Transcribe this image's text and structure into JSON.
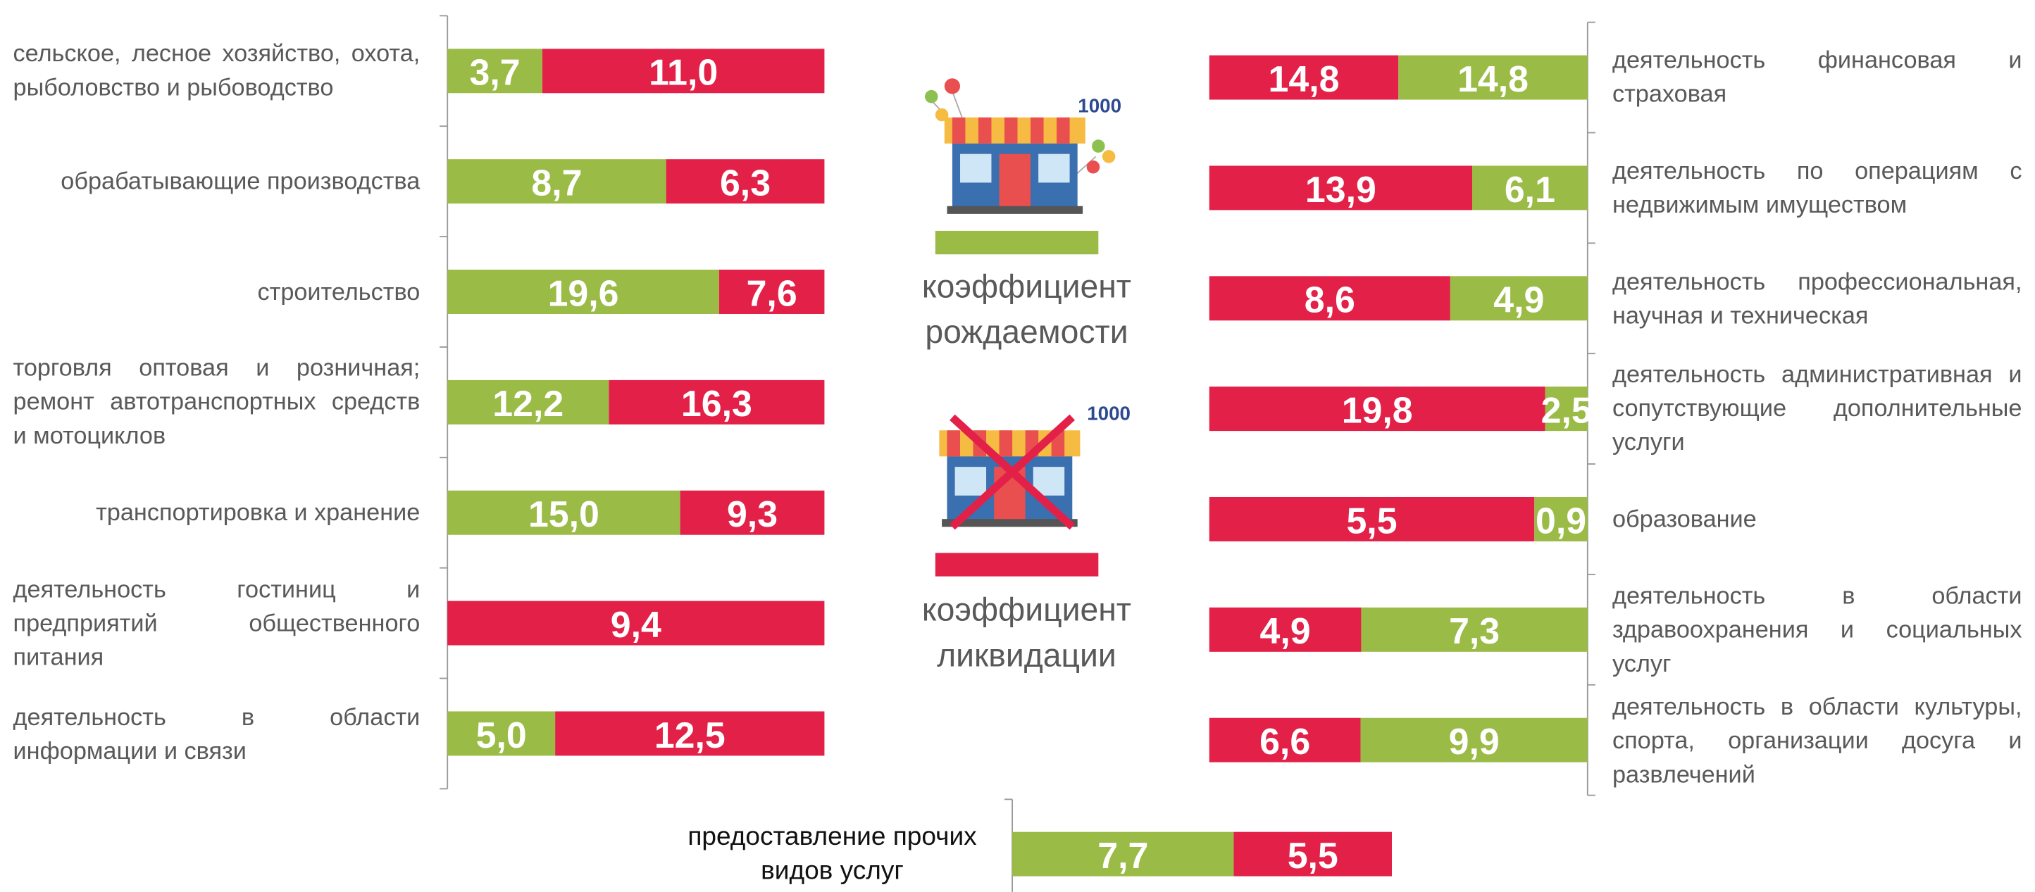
{
  "chart_data": [
    {
      "type": "bar",
      "stacked": "percent",
      "orientation": "horizontal",
      "per_unit_label": "1000",
      "categories": [
        "сельское, лесное хозяйство, охота, рыболовство и рыбоводство",
        "обрабатывающие производства",
        "строительство",
        "торговля оптовая и розничная; ремонт автотранспортных средств и мотоциклов",
        "транспортировка и хранение",
        "деятельность гостиниц и предприятий общественного питания",
        "деятельность в области информации и связи"
      ],
      "series": [
        {
          "name": "коэффициент рождаемости",
          "color": "#9bbb47",
          "values": [
            3.7,
            8.7,
            19.6,
            12.2,
            15.0,
            null,
            5.0
          ],
          "value_labels": [
            "3,7",
            "8,7",
            "19,6",
            "12,2",
            "15,0",
            null,
            "5,0"
          ]
        },
        {
          "name": "коэффициент ликвидации",
          "color": "#e32148",
          "values": [
            11.0,
            6.3,
            7.6,
            16.3,
            9.3,
            9.4,
            12.5
          ],
          "value_labels": [
            "11,0",
            "6,3",
            "7,6",
            "16,3",
            "9,3",
            "9,4",
            "12,5"
          ]
        }
      ]
    },
    {
      "type": "bar",
      "stacked": "percent",
      "orientation": "horizontal",
      "categories": [
        "деятельность финансовая и страховая",
        "деятельность по операциям с недвижимым имуществом",
        "деятельность профессиональная, научная и техническая",
        "деятельность административная и сопутствующие дополнительные услуги",
        "образование",
        "деятельность в области здравоохранения и социальных услуг",
        "деятельность в области культуры, спорта, организации досуга и развлечений"
      ],
      "series": [
        {
          "color": "#e32148",
          "values": [
            14.8,
            13.9,
            8.6,
            19.8,
            5.5,
            4.9,
            6.6
          ],
          "value_labels": [
            "14,8",
            "13,9",
            "8,6",
            "19,8",
            "5,5",
            "4,9",
            "6,6"
          ]
        },
        {
          "color": "#9bbb47",
          "values": [
            14.8,
            6.1,
            4.9,
            2.5,
            0.9,
            7.3,
            9.9
          ],
          "value_labels": [
            "14,8",
            "6,1",
            "4,9",
            "2,5",
            "0,9",
            "7,3",
            "9,9"
          ]
        }
      ]
    },
    {
      "type": "bar",
      "stacked": "percent",
      "orientation": "horizontal",
      "categories": [
        "предоставление прочих видов услуг"
      ],
      "series": [
        {
          "color": "#9bbb47",
          "values": [
            7.7
          ],
          "value_labels": [
            "7,7"
          ]
        },
        {
          "color": "#e32148",
          "values": [
            5.5
          ],
          "value_labels": [
            "5,5"
          ]
        }
      ]
    }
  ]
}
